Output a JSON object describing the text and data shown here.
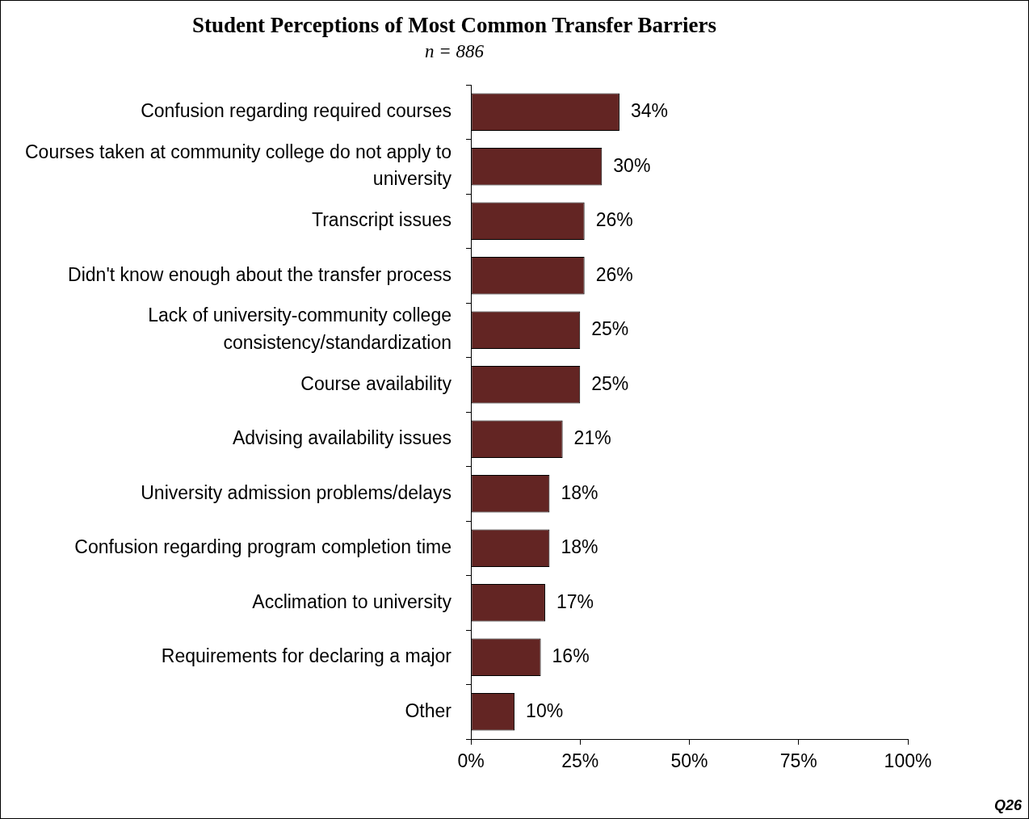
{
  "chart_data": {
    "type": "bar",
    "orientation": "horizontal",
    "title": "Student Perceptions of Most Common Transfer Barriers",
    "subtitle": "n = 886",
    "categories": [
      "Confusion regarding required courses",
      "Courses taken at community college do not apply to university",
      "Transcript issues",
      "Didn't know enough about the transfer process",
      "Lack of university-community college consistency/standardization",
      "Course availability",
      "Advising availability issues",
      "University admission problems/delays",
      "Confusion regarding program completion time",
      "Acclimation to university",
      "Requirements for declaring a major",
      "Other"
    ],
    "values": [
      34,
      30,
      26,
      26,
      25,
      25,
      21,
      18,
      18,
      17,
      16,
      10
    ],
    "value_labels": [
      "34%",
      "30%",
      "26%",
      "26%",
      "25%",
      "25%",
      "21%",
      "18%",
      "18%",
      "17%",
      "16%",
      "10%"
    ],
    "color": "#632523",
    "xlim": [
      0,
      100
    ],
    "xticks": [
      {
        "value": 0,
        "label": "0%"
      },
      {
        "value": 25,
        "label": "25%"
      },
      {
        "value": 50,
        "label": "50%"
      },
      {
        "value": 75,
        "label": "75%"
      },
      {
        "value": 100,
        "label": "100%"
      }
    ],
    "grid": false,
    "legend": false,
    "annotations": [
      "Q26"
    ]
  }
}
